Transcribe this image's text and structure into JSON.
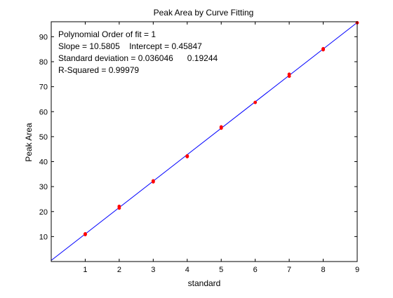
{
  "chart_data": {
    "type": "scatter",
    "title": "Peak Area by Curve Fitting",
    "xlabel": "standard",
    "ylabel": "Peak Area",
    "xlim": [
      0,
      9
    ],
    "ylim": [
      0,
      96
    ],
    "x_ticks": [
      1,
      2,
      3,
      4,
      5,
      6,
      7,
      8,
      9
    ],
    "y_ticks": [
      10,
      20,
      30,
      40,
      50,
      60,
      70,
      80,
      90
    ],
    "grid": false,
    "points": [
      {
        "x": 1,
        "y": 10.8
      },
      {
        "x": 1,
        "y": 11.1
      },
      {
        "x": 2,
        "y": 21.4
      },
      {
        "x": 2,
        "y": 22.1
      },
      {
        "x": 3,
        "y": 31.9
      },
      {
        "x": 3,
        "y": 32.3
      },
      {
        "x": 4,
        "y": 42.0
      },
      {
        "x": 4,
        "y": 42.3
      },
      {
        "x": 5,
        "y": 53.4
      },
      {
        "x": 5,
        "y": 53.9
      },
      {
        "x": 6,
        "y": 63.7
      },
      {
        "x": 7,
        "y": 74.2
      },
      {
        "x": 7,
        "y": 75.0
      },
      {
        "x": 8,
        "y": 84.8
      },
      {
        "x": 8,
        "y": 85.2
      },
      {
        "x": 9,
        "y": 95.6
      }
    ],
    "point_color": "#ff0000",
    "fit": {
      "slope": 10.5805,
      "intercept": 0.45847,
      "x_range": [
        0,
        9
      ],
      "color": "#0000ff"
    },
    "annotations": [
      "Polynomial Order of fit = 1",
      "Slope = 10.5805    Intercept = 0.45847",
      "Standard deviation = 0.036046      0.19244",
      "R-Squared = 0.99979"
    ]
  }
}
